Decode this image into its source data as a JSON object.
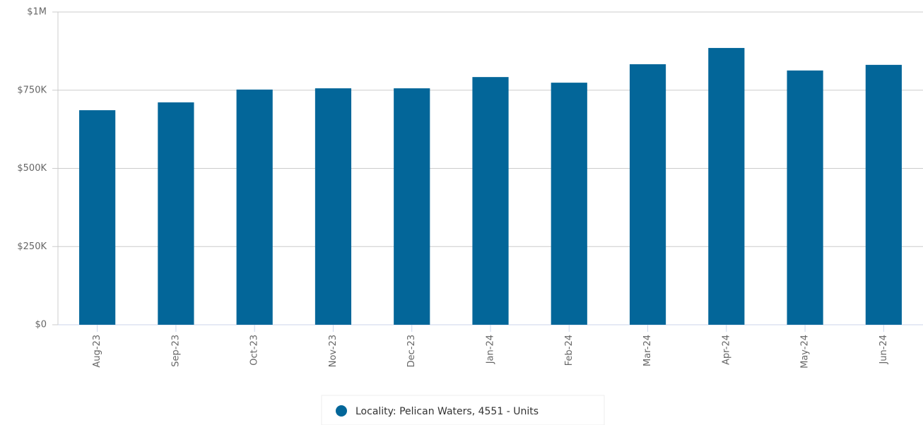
{
  "chart_data": {
    "type": "bar",
    "categories": [
      "Aug-23",
      "Sep-23",
      "Oct-23",
      "Nov-23",
      "Dec-23",
      "Jan-24",
      "Feb-24",
      "Mar-24",
      "Apr-24",
      "May-24",
      "Jun-24"
    ],
    "series": [
      {
        "name": "Locality: Pelican Waters, 4551 - Units",
        "color": "#036699",
        "values": [
          686000,
          711000,
          752000,
          756000,
          756000,
          792000,
          774000,
          833000,
          885000,
          813000,
          831000
        ]
      }
    ],
    "ylim": [
      0,
      1000000
    ],
    "yticks": [
      {
        "value": 0,
        "label": "$0"
      },
      {
        "value": 250000,
        "label": "$250K"
      },
      {
        "value": 500000,
        "label": "$500K"
      },
      {
        "value": 750000,
        "label": "$750K"
      },
      {
        "value": 1000000,
        "label": "$1M"
      }
    ],
    "grid": true,
    "legend": "bottom"
  }
}
